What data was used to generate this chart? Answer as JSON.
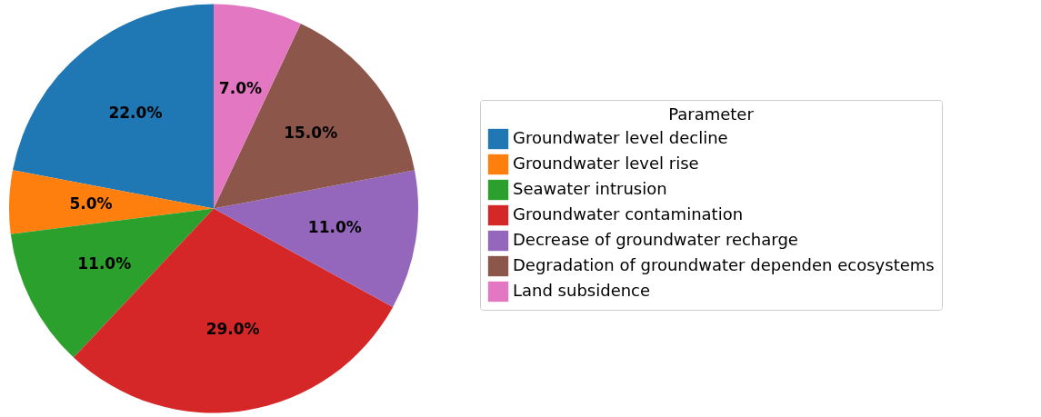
{
  "chart_data": {
    "type": "pie",
    "legend_title": "Parameter",
    "legend": "right",
    "categories": [
      "Groundwater level decline",
      "Groundwater level rise",
      "Seawater intrusion",
      "Groundwater contamination",
      "Decrease of groundwater recharge",
      "Degradation of groundwater dependen ecosystems",
      "Land subsidence"
    ],
    "values": [
      22,
      5,
      11,
      29,
      11,
      15,
      7
    ],
    "value_labels": [
      "22.0%",
      "5.0%",
      "11.0%",
      "29.0%",
      "11.0%",
      "15.0%",
      "7.0%"
    ],
    "colors": [
      "#1f77b4",
      "#ff7f0e",
      "#2ca02c",
      "#d62728",
      "#9467bd",
      "#8c564b",
      "#e377c2"
    ]
  }
}
